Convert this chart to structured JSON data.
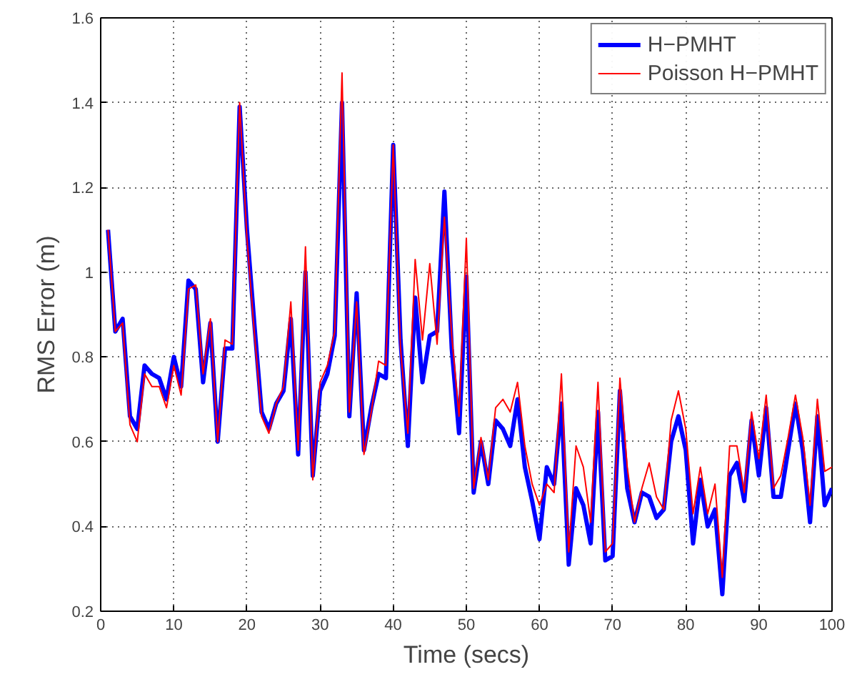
{
  "chart_data": {
    "type": "line",
    "xlabel": "Time (secs)",
    "ylabel": "RMS Error (m)",
    "x": [
      1,
      2,
      3,
      4,
      5,
      6,
      7,
      8,
      9,
      10,
      11,
      12,
      13,
      14,
      15,
      16,
      17,
      18,
      19,
      20,
      21,
      22,
      23,
      24,
      25,
      26,
      27,
      28,
      29,
      30,
      31,
      32,
      33,
      34,
      35,
      36,
      37,
      38,
      39,
      40,
      41,
      42,
      43,
      44,
      45,
      46,
      47,
      48,
      49,
      50,
      51,
      52,
      53,
      54,
      55,
      56,
      57,
      58,
      59,
      60,
      61,
      62,
      63,
      64,
      65,
      66,
      67,
      68,
      69,
      70,
      71,
      72,
      73,
      74,
      75,
      76,
      77,
      78,
      79,
      80,
      81,
      82,
      83,
      84,
      85,
      86,
      87,
      88,
      89,
      90,
      91,
      92,
      93,
      94,
      95,
      96,
      97,
      98,
      99,
      100
    ],
    "series": [
      {
        "name": "H−PMHT",
        "color": "#0000ff",
        "values": [
          1.1,
          0.86,
          0.89,
          0.66,
          0.63,
          0.78,
          0.76,
          0.75,
          0.7,
          0.8,
          0.73,
          0.98,
          0.96,
          0.74,
          0.88,
          0.6,
          0.82,
          0.82,
          1.39,
          1.1,
          0.88,
          0.67,
          0.63,
          0.69,
          0.72,
          0.89,
          0.57,
          1.0,
          0.52,
          0.72,
          0.76,
          0.85,
          1.4,
          0.66,
          0.95,
          0.58,
          0.68,
          0.76,
          0.75,
          1.3,
          0.84,
          0.59,
          0.94,
          0.74,
          0.85,
          0.86,
          1.19,
          0.82,
          0.62,
          0.99,
          0.48,
          0.6,
          0.5,
          0.65,
          0.63,
          0.59,
          0.7,
          0.54,
          0.46,
          0.37,
          0.54,
          0.5,
          0.69,
          0.31,
          0.49,
          0.45,
          0.36,
          0.67,
          0.32,
          0.33,
          0.72,
          0.49,
          0.41,
          0.48,
          0.47,
          0.42,
          0.44,
          0.6,
          0.66,
          0.58,
          0.36,
          0.51,
          0.4,
          0.44,
          0.24,
          0.52,
          0.55,
          0.46,
          0.65,
          0.52,
          0.68,
          0.47,
          0.47,
          0.58,
          0.69,
          0.58,
          0.41,
          0.66,
          0.45,
          0.49
        ]
      },
      {
        "name": "Poisson H−PMHT",
        "color": "#ff0000",
        "values": [
          1.1,
          0.86,
          0.88,
          0.64,
          0.6,
          0.76,
          0.73,
          0.73,
          0.68,
          0.78,
          0.71,
          0.96,
          0.97,
          0.76,
          0.89,
          0.6,
          0.84,
          0.83,
          1.4,
          1.08,
          0.86,
          0.66,
          0.62,
          0.69,
          0.73,
          0.93,
          0.58,
          1.06,
          0.51,
          0.74,
          0.78,
          0.86,
          1.47,
          0.67,
          0.93,
          0.57,
          0.67,
          0.79,
          0.78,
          1.3,
          0.82,
          0.62,
          1.03,
          0.84,
          1.02,
          0.83,
          1.13,
          0.85,
          0.66,
          1.08,
          0.49,
          0.61,
          0.51,
          0.68,
          0.7,
          0.67,
          0.74,
          0.59,
          0.5,
          0.45,
          0.5,
          0.48,
          0.76,
          0.34,
          0.59,
          0.54,
          0.41,
          0.74,
          0.34,
          0.36,
          0.75,
          0.54,
          0.41,
          0.49,
          0.55,
          0.47,
          0.44,
          0.65,
          0.72,
          0.63,
          0.43,
          0.54,
          0.43,
          0.5,
          0.28,
          0.59,
          0.59,
          0.48,
          0.67,
          0.56,
          0.71,
          0.49,
          0.52,
          0.61,
          0.71,
          0.61,
          0.45,
          0.7,
          0.53,
          0.54
        ]
      }
    ],
    "xlim": [
      0,
      100
    ],
    "ylim": [
      0.2,
      1.6
    ],
    "xticks": [
      0,
      10,
      20,
      30,
      40,
      50,
      60,
      70,
      80,
      90,
      100
    ],
    "yticks": [
      0.2,
      0.4,
      0.6,
      0.8,
      {
        "value": 1,
        "label": "1"
      },
      1.2,
      1.4,
      1.6
    ],
    "grid": true,
    "legend": "top right"
  }
}
